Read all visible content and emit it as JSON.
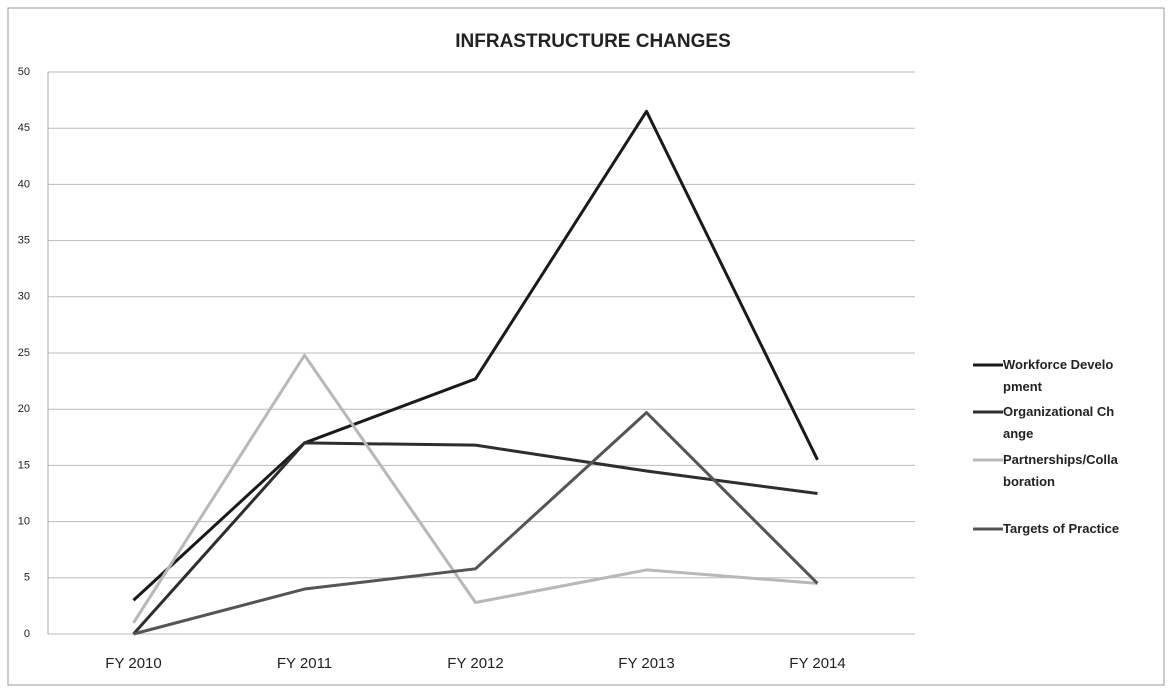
{
  "chart_data": {
    "type": "line",
    "title": "INFRASTRUCTURE CHANGES",
    "categories": [
      "FY 2010",
      "FY 2011",
      "FY 2012",
      "FY 2013",
      "FY 2014"
    ],
    "series": [
      {
        "name": "Workforce Development",
        "color": "#1a1a1a",
        "values": [
          3,
          17,
          22.7,
          46.5,
          15.5
        ]
      },
      {
        "name": "Organizational Change",
        "color": "#2e2e2e",
        "values": [
          0,
          17,
          16.8,
          14.5,
          12.5
        ]
      },
      {
        "name": "Partnerships/Collaboration",
        "color": "#b8b8b8",
        "values": [
          1,
          24.8,
          2.8,
          5.7,
          4.5
        ]
      },
      {
        "name": "Targets of Practice",
        "color": "#555555",
        "values": [
          0,
          4,
          5.8,
          19.7,
          4.5
        ]
      }
    ],
    "ylim": [
      0,
      50
    ],
    "yticks": [
      0,
      5,
      10,
      15,
      20,
      25,
      30,
      35,
      40,
      45,
      50
    ],
    "grid": true,
    "legend": "right"
  }
}
